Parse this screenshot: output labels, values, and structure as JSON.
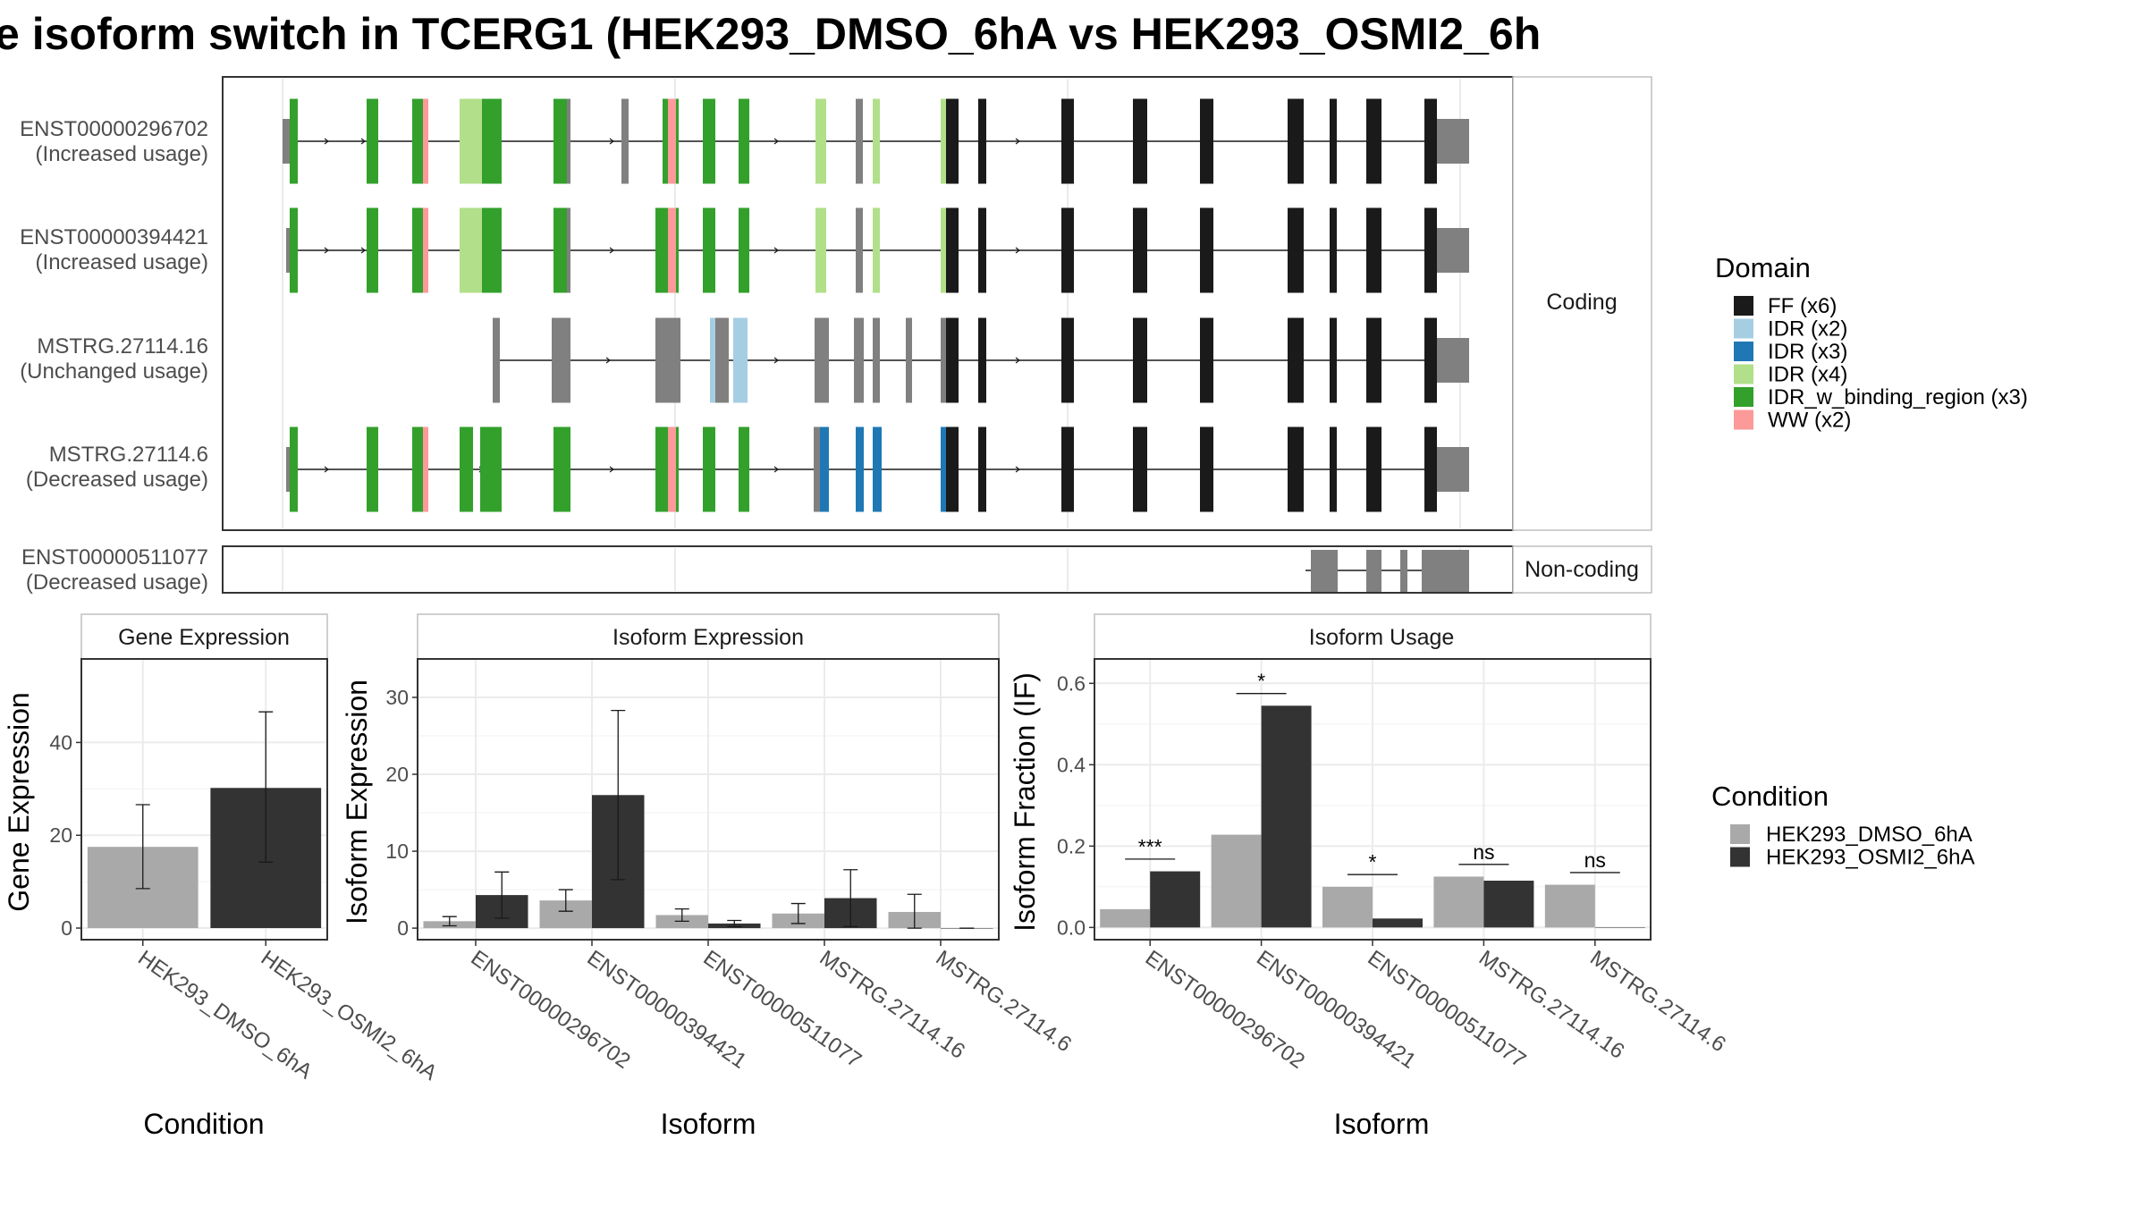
{
  "title": "e isoform switch in TCERG1 (HEK293_DMSO_6hA vs HEK293_OSMI2_6h",
  "structure": {
    "facet_coding": "Coding",
    "facet_noncoding": "Non-coding",
    "transcripts": [
      {
        "id": "ENST00000296702",
        "usage": "(Increased usage)",
        "group": "coding"
      },
      {
        "id": "ENST00000394421",
        "usage": "(Increased usage)",
        "group": "coding"
      },
      {
        "id": "MSTRG.27114.16",
        "usage": "(Unchanged usage)",
        "group": "coding"
      },
      {
        "id": "MSTRG.27114.6",
        "usage": "(Decreased usage)",
        "group": "coding"
      },
      {
        "id": "ENST00000511077",
        "usage": "(Decreased usage)",
        "group": "noncoding"
      }
    ]
  },
  "legend_domain": {
    "title": "Domain",
    "items": [
      {
        "label": "FF (x6)",
        "color": "#1a1a1a"
      },
      {
        "label": "IDR (x2)",
        "color": "#a6cee3"
      },
      {
        "label": "IDR (x3)",
        "color": "#1f78b4"
      },
      {
        "label": "IDR (x4)",
        "color": "#b2df8a"
      },
      {
        "label": "IDR_w_binding_region (x3)",
        "color": "#33a02c"
      },
      {
        "label": "WW (x2)",
        "color": "#fb9a99"
      }
    ]
  },
  "legend_condition": {
    "title": "Condition",
    "items": [
      {
        "label": "HEK293_DMSO_6hA",
        "color": "#a9a9a9"
      },
      {
        "label": "HEK293_OSMI2_6hA",
        "color": "#333333"
      }
    ]
  },
  "chart_data": [
    {
      "type": "bar",
      "title": "Gene Expression",
      "xlabel": "Condition",
      "ylabel": "Gene Expression",
      "categories": [
        "HEK293_DMSO_6hA",
        "HEK293_OSMI2_6hA"
      ],
      "values": [
        17.5,
        30.2
      ],
      "error_low": [
        8.5,
        14.2
      ],
      "error_high": [
        26.6,
        46.6
      ],
      "colors": [
        "#a9a9a9",
        "#333333"
      ],
      "ylim": [
        -2.5,
        58
      ],
      "yticks": [
        0,
        20,
        40
      ]
    },
    {
      "type": "bar",
      "title": "Isoform Expression",
      "xlabel": "Isoform",
      "ylabel": "Isoform Expression",
      "categories": [
        "ENST00000296702",
        "ENST00000394421",
        "ENST00000511077",
        "MSTRG.27114.16",
        "MSTRG.27114.6"
      ],
      "series": [
        {
          "name": "HEK293_DMSO_6hA",
          "values": [
            0.9,
            3.6,
            1.7,
            1.9,
            2.1
          ],
          "err_low": [
            0.3,
            2.2,
            0.9,
            0.6,
            0.0
          ],
          "err_high": [
            1.5,
            5.0,
            2.5,
            3.2,
            4.4
          ]
        },
        {
          "name": "HEK293_OSMI2_6hA",
          "values": [
            4.3,
            17.3,
            0.6,
            3.9,
            0.0
          ],
          "err_low": [
            1.3,
            6.3,
            0.2,
            0.2,
            0.0
          ],
          "err_high": [
            7.3,
            28.3,
            1.0,
            7.6,
            0.0
          ]
        }
      ],
      "ylim": [
        -1.5,
        35
      ],
      "yticks": [
        0,
        10,
        20,
        30
      ]
    },
    {
      "type": "bar",
      "title": "Isoform Usage",
      "xlabel": "Isoform",
      "ylabel": "Isoform Fraction (IF)",
      "categories": [
        "ENST00000296702",
        "ENST00000394421",
        "ENST00000511077",
        "MSTRG.27114.16",
        "MSTRG.27114.6"
      ],
      "series": [
        {
          "name": "HEK293_DMSO_6hA",
          "values": [
            0.045,
            0.228,
            0.1,
            0.125,
            0.105
          ]
        },
        {
          "name": "HEK293_OSMI2_6hA",
          "values": [
            0.138,
            0.545,
            0.022,
            0.115,
            0.0
          ]
        }
      ],
      "significance": [
        "***",
        "*",
        "*",
        "ns",
        "ns"
      ],
      "ylim": [
        -0.03,
        0.66
      ],
      "yticks": [
        0.0,
        0.2,
        0.4,
        0.6
      ]
    }
  ]
}
